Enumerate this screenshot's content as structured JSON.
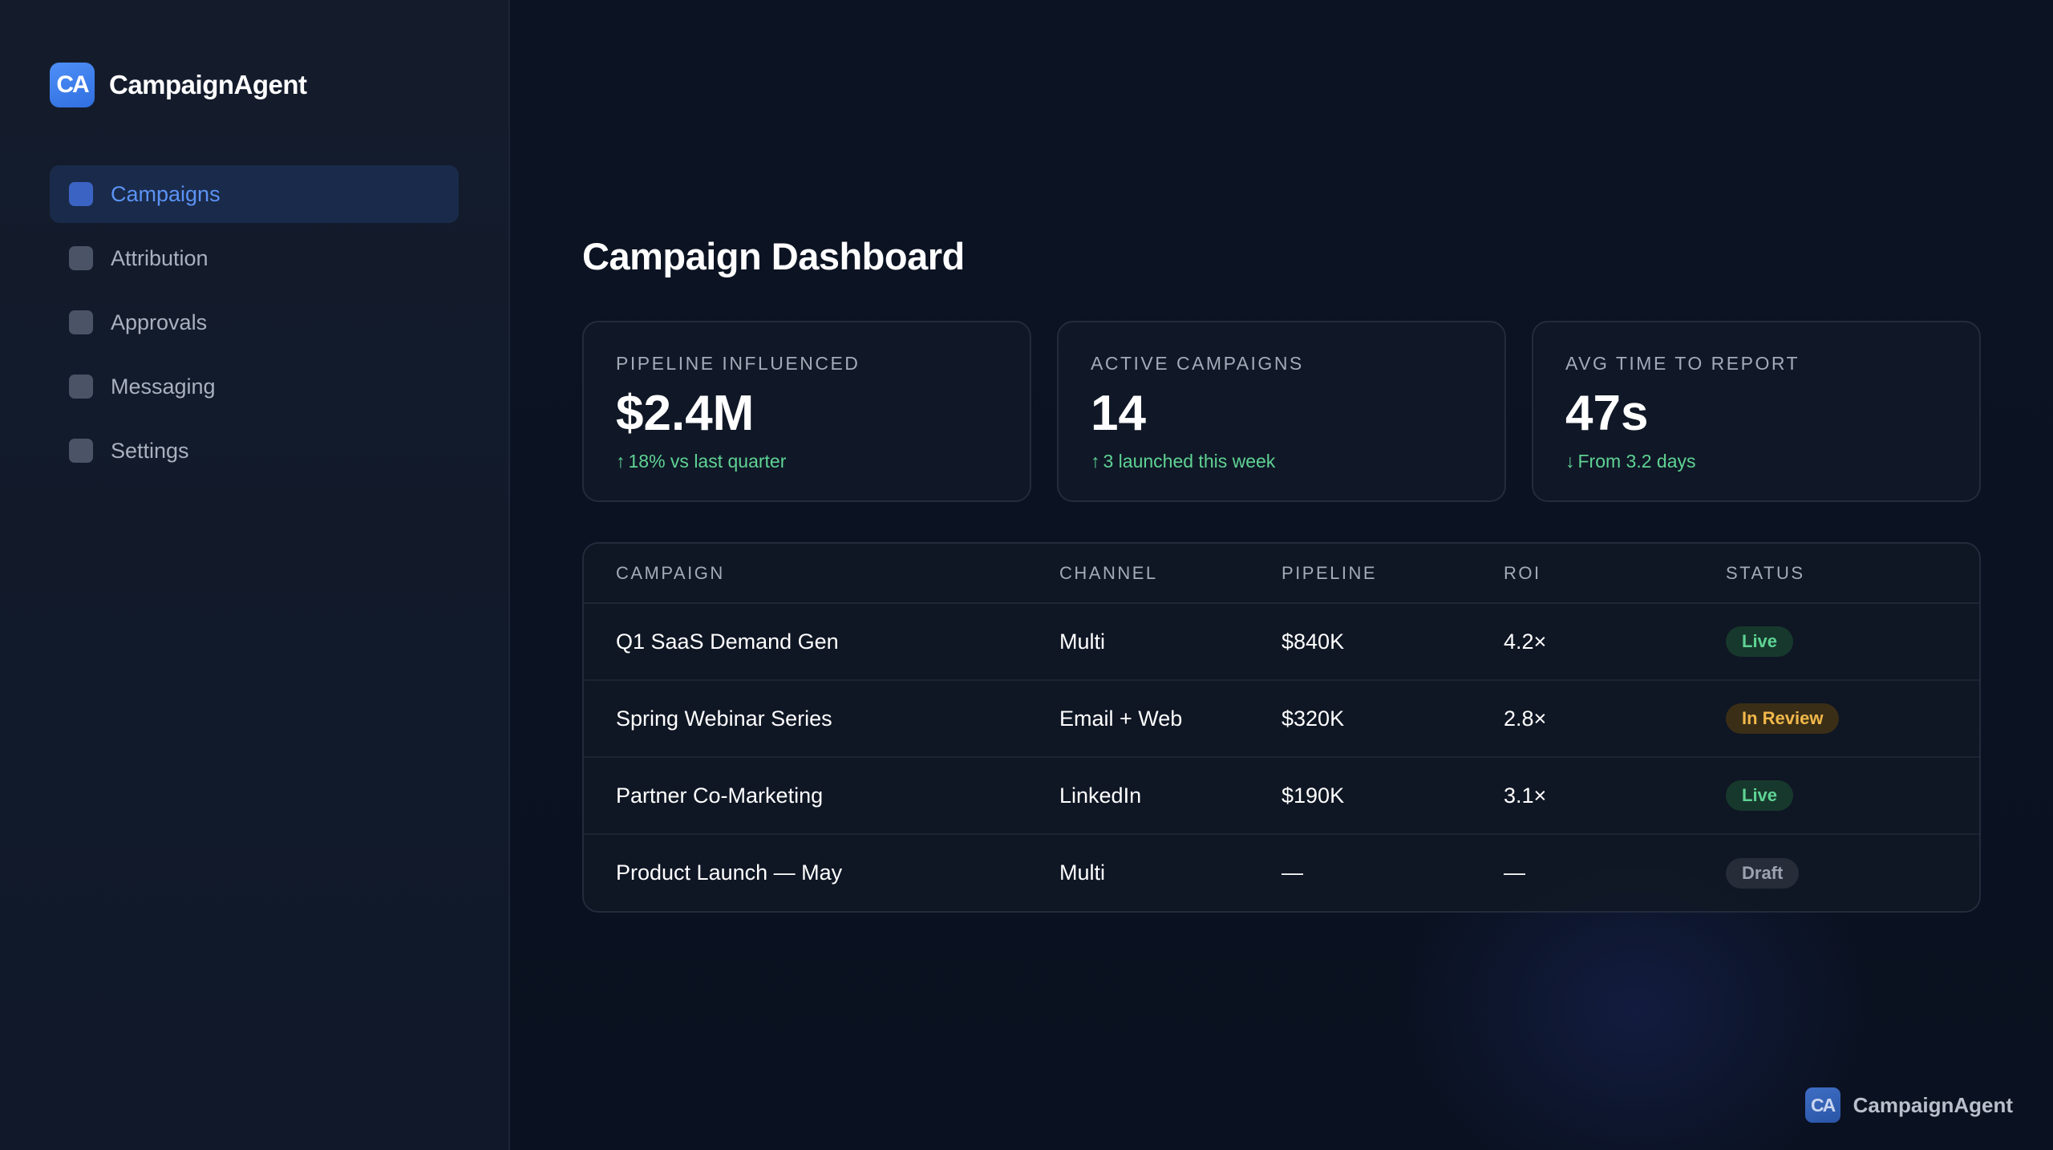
{
  "app": {
    "logo_text": "CA",
    "name": "CampaignAgent"
  },
  "sidebar": {
    "items": [
      {
        "label": "Campaigns",
        "active": true
      },
      {
        "label": "Attribution",
        "active": false
      },
      {
        "label": "Approvals",
        "active": false
      },
      {
        "label": "Messaging",
        "active": false
      },
      {
        "label": "Settings",
        "active": false
      }
    ]
  },
  "main": {
    "title": "Campaign Dashboard",
    "stats": [
      {
        "label": "PIPELINE INFLUENCED",
        "value": "$2.4M",
        "arrow": "↑",
        "delta": "18% vs last quarter"
      },
      {
        "label": "ACTIVE CAMPAIGNS",
        "value": "14",
        "arrow": "↑",
        "delta": "3 launched this week"
      },
      {
        "label": "AVG TIME TO REPORT",
        "value": "47s",
        "arrow": "↓",
        "delta": "From 3.2 days"
      }
    ],
    "table": {
      "headers": [
        "CAMPAIGN",
        "CHANNEL",
        "PIPELINE",
        "ROI",
        "STATUS"
      ],
      "rows": [
        {
          "campaign": "Q1 SaaS Demand Gen",
          "channel": "Multi",
          "pipeline": "$840K",
          "roi": "4.2×",
          "status": "Live"
        },
        {
          "campaign": "Spring Webinar Series",
          "channel": "Email + Web",
          "pipeline": "$320K",
          "roi": "2.8×",
          "status": "In Review"
        },
        {
          "campaign": "Partner Co-Marketing",
          "channel": "LinkedIn",
          "pipeline": "$190K",
          "roi": "3.1×",
          "status": "Live"
        },
        {
          "campaign": "Product Launch — May",
          "channel": "Multi",
          "pipeline": "—",
          "roi": "—",
          "status": "Draft"
        }
      ]
    }
  },
  "footer": {
    "logo_text": "CA",
    "name": "CampaignAgent"
  },
  "colors": {
    "accent": "#5b93f5",
    "positive": "#5fd394",
    "warning": "#f1b84a",
    "muted": "#9ba3b1"
  }
}
